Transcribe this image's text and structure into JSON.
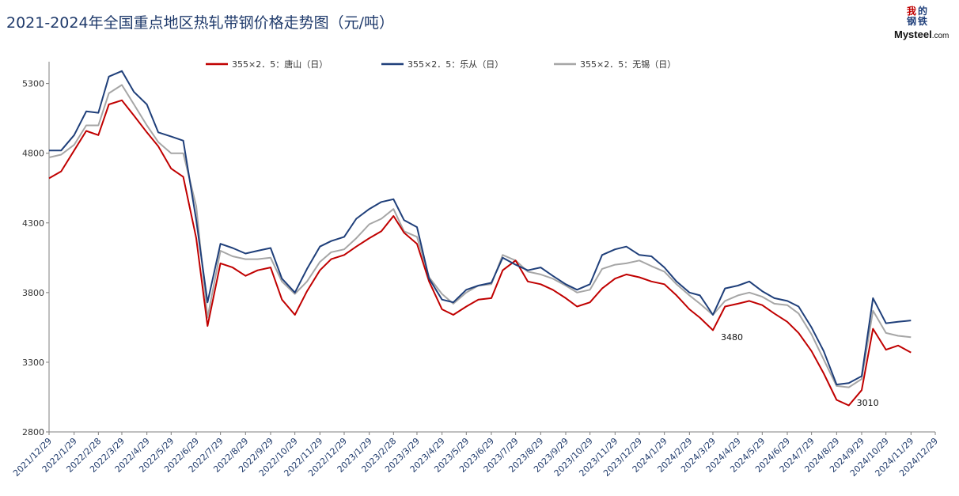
{
  "title": "2021-2024年全国重点地区热轧带钢价格走势图（元/吨）",
  "logo": {
    "seal_chars": [
      "我",
      "的",
      "钢",
      "铁"
    ],
    "brand_main": "Mysteel",
    "brand_suffix": ".com"
  },
  "chart_data": {
    "type": "line",
    "title": "2021-2024年全国重点地区热轧带钢价格走势图（元/吨）",
    "xlabel": "",
    "ylabel": "",
    "ylim": [
      2800,
      5400
    ],
    "yticks": [
      2800,
      3300,
      3800,
      4300,
      4800,
      5300
    ],
    "xticks": [
      "2021/12/29",
      "2022/1/29",
      "2022/2/28",
      "2022/3/29",
      "2022/4/29",
      "2022/5/29",
      "2022/6/29",
      "2022/7/29",
      "2022/8/29",
      "2022/9/29",
      "2022/10/29",
      "2022/11/29",
      "2022/12/29",
      "2023/1/29",
      "2023/2/28",
      "2023/3/29",
      "2023/4/29",
      "2023/5/29",
      "2023/6/29",
      "2023/7/29",
      "2023/8/29",
      "2023/9/29",
      "2023/10/29",
      "2023/11/29",
      "2023/12/29",
      "2024/1/29",
      "2024/2/29",
      "2024/3/29",
      "2024/4/29",
      "2024/5/29",
      "2024/6/29",
      "2024/7/29",
      "2024/8/29",
      "2024/9/29",
      "2024/10/29",
      "2024/11/29",
      "2024/12/29"
    ],
    "x": [
      "2021/12/29",
      "2022/1/13",
      "2022/1/29",
      "2022/2/13",
      "2022/2/28",
      "2022/3/13",
      "2022/3/29",
      "2022/4/13",
      "2022/4/29",
      "2022/5/13",
      "2022/5/29",
      "2022/6/13",
      "2022/6/29",
      "2022/7/13",
      "2022/7/29",
      "2022/8/13",
      "2022/8/29",
      "2022/9/13",
      "2022/9/29",
      "2022/10/13",
      "2022/10/29",
      "2022/11/13",
      "2022/11/29",
      "2022/12/13",
      "2022/12/29",
      "2023/1/13",
      "2023/1/29",
      "2023/2/13",
      "2023/2/28",
      "2023/3/13",
      "2023/3/29",
      "2023/4/13",
      "2023/4/29",
      "2023/5/13",
      "2023/5/29",
      "2023/6/13",
      "2023/6/29",
      "2023/7/13",
      "2023/7/29",
      "2023/8/13",
      "2023/8/29",
      "2023/9/13",
      "2023/9/29",
      "2023/10/13",
      "2023/10/29",
      "2023/11/13",
      "2023/11/29",
      "2023/12/13",
      "2023/12/29",
      "2024/1/13",
      "2024/1/29",
      "2024/2/13",
      "2024/2/29",
      "2024/3/13",
      "2024/3/29",
      "2024/4/13",
      "2024/4/29",
      "2024/5/13",
      "2024/5/29",
      "2024/6/13",
      "2024/6/29",
      "2024/7/13",
      "2024/7/29",
      "2024/8/13",
      "2024/8/29",
      "2024/9/13",
      "2024/9/29",
      "2024/10/13",
      "2024/10/29",
      "2024/11/13",
      "2024/11/29"
    ],
    "legend_position": "top",
    "grid": false,
    "series": [
      {
        "name": "355×2．5：唐山（日）",
        "color": "#c00000",
        "values": [
          4620,
          4670,
          4820,
          4960,
          4930,
          5150,
          5180,
          5070,
          4950,
          4850,
          4690,
          4630,
          4190,
          3560,
          4010,
          3980,
          3920,
          3960,
          3980,
          3750,
          3640,
          3810,
          3960,
          4040,
          4070,
          4130,
          4190,
          4240,
          4350,
          4230,
          4150,
          3880,
          3680,
          3640,
          3700,
          3750,
          3760,
          3960,
          4030,
          3880,
          3860,
          3820,
          3760,
          3700,
          3730,
          3830,
          3900,
          3930,
          3910,
          3880,
          3860,
          3780,
          3680,
          3620,
          3530,
          3700,
          3720,
          3740,
          3710,
          3650,
          3590,
          3510,
          3380,
          3220,
          3030,
          2990,
          3100,
          3540,
          3390,
          3420,
          3370
        ]
      },
      {
        "name": "355×2．5：乐从（日）",
        "color": "#1f3f7a",
        "values": [
          4820,
          4820,
          4930,
          5100,
          5090,
          5350,
          5390,
          5240,
          5150,
          4950,
          4920,
          4890,
          4320,
          3730,
          4150,
          4120,
          4080,
          4100,
          4120,
          3900,
          3800,
          3970,
          4130,
          4170,
          4200,
          4330,
          4400,
          4450,
          4470,
          4320,
          4270,
          3900,
          3750,
          3730,
          3820,
          3850,
          3870,
          4050,
          4000,
          3960,
          3980,
          3920,
          3860,
          3820,
          3860,
          4070,
          4110,
          4130,
          4070,
          4060,
          3980,
          3880,
          3800,
          3780,
          3640,
          3830,
          3850,
          3880,
          3810,
          3760,
          3740,
          3700,
          3550,
          3380,
          3140,
          3150,
          3200,
          3760,
          3580,
          3590,
          3600
        ]
      },
      {
        "name": "355×2．5：无锡（日）",
        "color": "#a6a6a6",
        "values": [
          4770,
          4790,
          4860,
          5000,
          5000,
          5230,
          5290,
          5150,
          5000,
          4880,
          4800,
          4800,
          4420,
          3620,
          4100,
          4060,
          4040,
          4040,
          4050,
          3880,
          3790,
          3880,
          4020,
          4090,
          4110,
          4190,
          4290,
          4330,
          4400,
          4240,
          4200,
          3910,
          3790,
          3720,
          3800,
          3850,
          3860,
          4070,
          4030,
          3950,
          3930,
          3900,
          3850,
          3800,
          3820,
          3970,
          4000,
          4010,
          4030,
          3990,
          3950,
          3860,
          3780,
          3720,
          3640,
          3740,
          3780,
          3800,
          3770,
          3720,
          3710,
          3650,
          3500,
          3320,
          3130,
          3120,
          3180,
          3670,
          3510,
          3490,
          3480
        ]
      }
    ],
    "annotations": [
      {
        "text": "3480",
        "x": "2024/3/29",
        "y": 3480
      },
      {
        "text": "3010",
        "x": "2024/9/13",
        "y": 3010
      }
    ]
  }
}
